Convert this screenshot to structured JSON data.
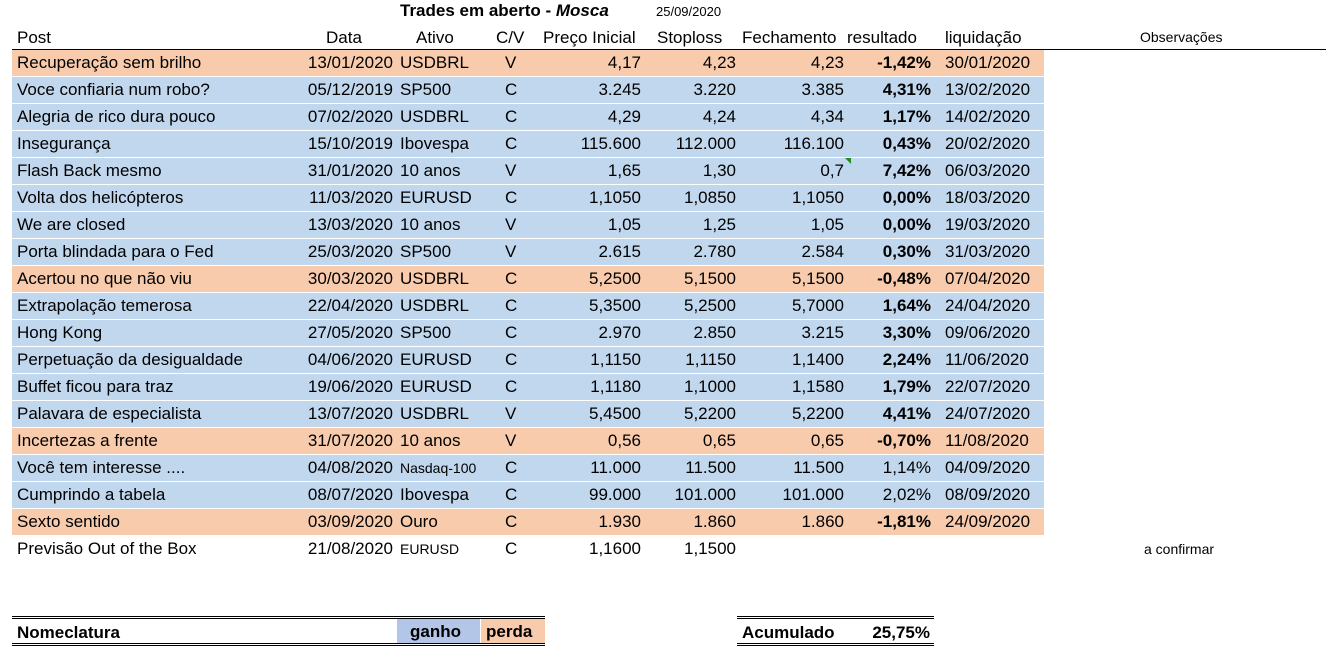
{
  "title": {
    "main": "Trades em aberto",
    "separator": " - ",
    "emph": "Mosca",
    "date": "25/09/2020"
  },
  "headers": {
    "post": "Post",
    "data": "Data",
    "ativo": "Ativo",
    "cv": "C/V",
    "preco": "Preço Inicial",
    "stop": "Stoploss",
    "fech": "Fechamento",
    "res": "resultado",
    "liq": "liquidação",
    "obs": "Observações"
  },
  "rows": [
    {
      "status": "loss",
      "post": "Recuperação sem brilho",
      "data": "13/01/2020",
      "ativo": "USDBRL",
      "cv": "V",
      "preco": "4,17",
      "stop": "4,23",
      "fech": "4,23",
      "res": "-1,42%",
      "liq": "30/01/2020"
    },
    {
      "status": "gain",
      "post": "Voce confiaria num robo?",
      "data": "05/12/2019",
      "ativo": "SP500",
      "cv": "C",
      "preco": "3.245",
      "stop": "3.220",
      "fech": "3.385",
      "res": "4,31%",
      "liq": "13/02/2020"
    },
    {
      "status": "gain",
      "post": "Alegria de rico dura pouco",
      "data": "07/02/2020",
      "ativo": "USDBRL",
      "cv": "C",
      "preco": "4,29",
      "stop": "4,24",
      "fech": "4,34",
      "res": "1,17%",
      "liq": "14/02/2020"
    },
    {
      "status": "gain",
      "post": "Insegurança",
      "data": "15/10/2019",
      "ativo": "Ibovespa",
      "cv": "C",
      "preco": "115.600",
      "stop": "112.000",
      "fech": "116.100",
      "res": "0,43%",
      "liq": "20/02/2020"
    },
    {
      "status": "gain",
      "post": "Flash Back mesmo",
      "data": "31/01/2020",
      "ativo": "10 anos",
      "cv": "V",
      "preco": "1,65",
      "stop": "1,30",
      "fech": "0,7",
      "res": "7,42%",
      "liq": "06/03/2020"
    },
    {
      "status": "gain",
      "post": "Volta dos helicópteros",
      "data": "11/03/2020",
      "ativo": "EURUSD",
      "cv": "C",
      "preco": "1,1050",
      "stop": "1,0850",
      "fech": "1,1050",
      "res": "0,00%",
      "liq": "18/03/2020"
    },
    {
      "status": "gain",
      "post": "We are closed",
      "data": "13/03/2020",
      "ativo": "10 anos",
      "cv": "V",
      "preco": "1,05",
      "stop": "1,25",
      "fech": "1,05",
      "res": "0,00%",
      "liq": "19/03/2020"
    },
    {
      "status": "gain",
      "post": "Porta blindada para o Fed",
      "data": "25/03/2020",
      "ativo": "SP500",
      "cv": "V",
      "preco": "2.615",
      "stop": "2.780",
      "fech": "2.584",
      "res": "0,30%",
      "liq": "31/03/2020"
    },
    {
      "status": "loss",
      "post": "Acertou no que não viu",
      "data": "30/03/2020",
      "ativo": "USDBRL",
      "cv": "C",
      "preco": "5,2500",
      "stop": "5,1500",
      "fech": "5,1500",
      "res": "-0,48%",
      "liq": "07/04/2020"
    },
    {
      "status": "gain",
      "post": "Extrapolação temerosa",
      "data": "22/04/2020",
      "ativo": "USDBRL",
      "cv": "C",
      "preco": "5,3500",
      "stop": "5,2500",
      "fech": "5,7000",
      "res": "1,64%",
      "liq": "24/04/2020"
    },
    {
      "status": "gain",
      "post": "Hong Kong",
      "data": "27/05/2020",
      "ativo": "SP500",
      "cv": "C",
      "preco": "2.970",
      "stop": "2.850",
      "fech": "3.215",
      "res": "3,30%",
      "liq": "09/06/2020"
    },
    {
      "status": "gain",
      "post": "Perpetuação da desigualdade",
      "data": "04/06/2020",
      "ativo": "EURUSD",
      "cv": "C",
      "preco": "1,1150",
      "stop": "1,1150",
      "fech": "1,1400",
      "res": "2,24%",
      "liq": "11/06/2020"
    },
    {
      "status": "gain",
      "post": "Buffet ficou para traz",
      "data": "19/06/2020",
      "ativo": "EURUSD",
      "cv": "C",
      "preco": "1,1180",
      "stop": "1,1000",
      "fech": "1,1580",
      "res": "1,79%",
      "liq": "22/07/2020"
    },
    {
      "status": "gain",
      "post": "Palavara de especialista",
      "data": "13/07/2020",
      "ativo": "USDBRL",
      "cv": "V",
      "preco": "5,4500",
      "stop": "5,2200",
      "fech": "5,2200",
      "res": "4,41%",
      "liq": "24/07/2020"
    },
    {
      "status": "loss",
      "post": "Incertezas a frente",
      "data": "31/07/2020",
      "ativo": "10 anos",
      "cv": "V",
      "preco": "0,56",
      "stop": "0,65",
      "fech": "0,65",
      "res": "-0,70%",
      "liq": "11/08/2020"
    },
    {
      "status": "gain",
      "post": "Você tem interesse ....",
      "data": "04/08/2020",
      "ativo": "Nasdaq-100",
      "cv": "C",
      "preco": "11.000",
      "stop": "11.500",
      "fech": "11.500",
      "res": "1,14%",
      "liq": "04/09/2020"
    },
    {
      "status": "gain",
      "post": "Cumprindo a tabela",
      "data": "08/07/2020",
      "ativo": "Ibovespa",
      "cv": "C",
      "preco": "99.000",
      "stop": "101.000",
      "fech": "101.000",
      "res": "2,02%",
      "liq": "08/09/2020"
    },
    {
      "status": "loss",
      "post": "Sexto sentido",
      "data": "03/09/2020",
      "ativo": "Ouro",
      "cv": "C",
      "preco": "1.930",
      "stop": "1.860",
      "fech": "1.860",
      "res": "-1,81%",
      "liq": "24/09/2020"
    },
    {
      "status": "none",
      "post": "Previsão Out of the Box",
      "data": "21/08/2020",
      "ativo": "EURUSD",
      "cv": "C",
      "preco": "1,1600",
      "stop": "1,1500",
      "fech": "",
      "res": "",
      "liq": "",
      "obs": "a confirmar"
    }
  ],
  "footer": {
    "nomenclatura": "Nomeclatura",
    "gain_label": "ganho",
    "loss_label": "perda",
    "acumulado_label": "Acumulado",
    "acumulado_value": "25,75%"
  },
  "colors": {
    "gain": "#c1d7ee",
    "loss": "#f8cbad",
    "legend_gain": "#b4c6e7"
  }
}
